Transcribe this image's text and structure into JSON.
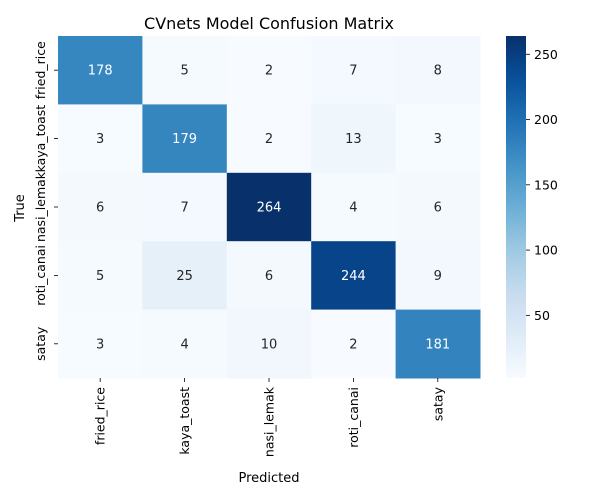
{
  "chart_data": {
    "type": "heatmap",
    "title": "CVnets Model Confusion Matrix",
    "xlabel": "Predicted",
    "ylabel": "True",
    "x_categories": [
      "fried_rice",
      "kaya_toast",
      "nasi_lemak",
      "roti_canai",
      "satay"
    ],
    "y_categories": [
      "fried_rice",
      "kaya_toast",
      "nasi_lemak",
      "roti_canai",
      "satay"
    ],
    "values": [
      [
        178,
        5,
        2,
        7,
        8
      ],
      [
        3,
        179,
        2,
        13,
        3
      ],
      [
        6,
        7,
        264,
        4,
        6
      ],
      [
        5,
        25,
        6,
        244,
        9
      ],
      [
        3,
        4,
        10,
        2,
        181
      ]
    ],
    "colormap": "Blues",
    "color_range": [
      2,
      264
    ],
    "colorbar_ticks": [
      50,
      100,
      150,
      200,
      250
    ],
    "annotate": true
  }
}
